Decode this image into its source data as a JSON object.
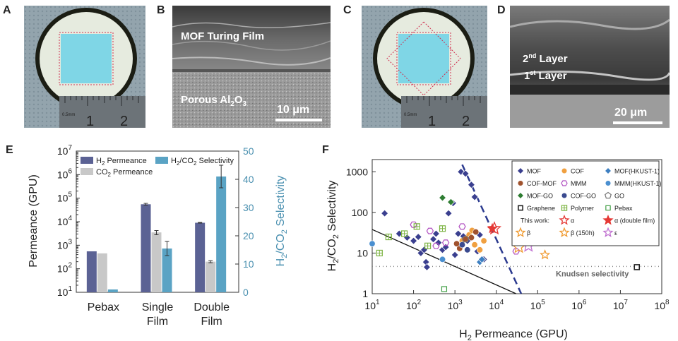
{
  "panels": {
    "a": {
      "letter": "A",
      "ruler_numbers": [
        "1",
        "2"
      ],
      "ruler_unit": "0.5mm"
    },
    "b": {
      "letter": "B",
      "label_film": "MOF Turing Film",
      "label_substrate": "Porous Al",
      "label_substrate_sub": "2",
      "label_substrate_tail": "O",
      "label_substrate_sub2": "3",
      "scale": "10 μm"
    },
    "c": {
      "letter": "C",
      "ruler_numbers": [
        "1",
        "2"
      ],
      "ruler_unit": "0.5mm"
    },
    "d": {
      "letter": "D",
      "layer2": "2",
      "layer2_sup": "nd",
      "layer2_tail": " Layer",
      "layer1": "1",
      "layer1_sup": "st",
      "layer1_tail": " Layer",
      "scale": "20 μm"
    },
    "e": {
      "letter": "E"
    },
    "f": {
      "letter": "F"
    }
  },
  "colors": {
    "h2_bar": "#5b6294",
    "co2_bar": "#c8c8c8",
    "sel_bar": "#5aa3c4",
    "membrane": "#7fd6e6",
    "dashed_line": "#2b3a8f"
  },
  "chart_data": [
    {
      "type": "bar",
      "ylabel": "Permeance (GPU)",
      "y2label": "H2/CO2 Selectivity",
      "yscale": "log",
      "ylim": [
        10,
        10000000
      ],
      "y2lim": [
        0,
        50
      ],
      "categories": [
        "Pebax",
        "Single Film",
        "Double Film"
      ],
      "category_lines": [
        [
          "Pebax"
        ],
        [
          "Single",
          "Film"
        ],
        [
          "Double",
          "Film"
        ]
      ],
      "yticks": [
        "10",
        "10",
        "10",
        "10",
        "10",
        "10",
        "10"
      ],
      "ytick_exps": [
        "1",
        "2",
        "3",
        "4",
        "5",
        "6",
        "7"
      ],
      "y2ticks": [
        "0",
        "10",
        "20",
        "30",
        "40",
        "50"
      ],
      "legend": {
        "h2": "H",
        "h2_sub": "2",
        "h2_tail": " Permeance",
        "sel": "H",
        "sel_sub": "2",
        "sel_mid": "/CO",
        "sel_sub2": "2",
        "sel_tail": " Selectivity",
        "co2": "CO",
        "co2_sub": "2",
        "co2_tail": " Permeance"
      },
      "series": [
        {
          "name": "H2 Permeance",
          "axis": "left",
          "values": [
            550,
            55000,
            9000
          ],
          "errors": [
            0,
            5000,
            300
          ]
        },
        {
          "name": "CO2 Permeance",
          "axis": "left",
          "values": [
            450,
            3500,
            200
          ],
          "errors": [
            0,
            700,
            20
          ]
        },
        {
          "name": "H2/CO2 Selectivity",
          "axis": "right",
          "values": [
            1,
            15.5,
            41
          ],
          "errors": [
            0,
            2.5,
            4
          ]
        }
      ]
    },
    {
      "type": "scatter",
      "xlabel": "H2 Permeance (GPU)",
      "ylabel": "H2/CO2 Selectivity",
      "xscale": "log",
      "yscale": "log",
      "xlim": [
        10,
        100000000
      ],
      "ylim": [
        1,
        2000
      ],
      "xticks_base": "10",
      "xtick_exps": [
        "1",
        "2",
        "3",
        "4",
        "5",
        "6",
        "7",
        "8"
      ],
      "yticks": [
        "1",
        "10",
        "100",
        "1000"
      ],
      "knudsen_label": "Knudsen selectivity",
      "knudsen_value": 4.7,
      "this_work_label": "This work:",
      "legend": [
        {
          "label": "MOF",
          "marker": "diamond",
          "color": "#3a3f8f"
        },
        {
          "label": "COF",
          "marker": "circle",
          "color": "#f0a040"
        },
        {
          "label": "MOF(HKUST-1)",
          "marker": "diamond",
          "color": "#3d7fc1"
        },
        {
          "label": "COF-MOF",
          "marker": "circle",
          "color": "#a0522d"
        },
        {
          "label": "MMM",
          "marker": "hexagon",
          "color": "#b04ec0"
        },
        {
          "label": "MMM(HKUST-1)",
          "marker": "circle",
          "color": "#4a8fd0"
        },
        {
          "label": "MOF-GO",
          "marker": "diamond",
          "color": "#2e7d32"
        },
        {
          "label": "COF-GO",
          "marker": "circle",
          "color": "#3a4a8f"
        },
        {
          "label": "GO",
          "marker": "pentagon",
          "color": "#777"
        },
        {
          "label": "Graphene",
          "marker": "square",
          "color": "#222"
        },
        {
          "label": "Polymer",
          "marker": "square-plus",
          "color": "#7cb342"
        },
        {
          "label": "Pebax",
          "marker": "square-open",
          "color": "#43a047"
        },
        {
          "label": "α",
          "marker": "star-open",
          "color": "#e53935"
        },
        {
          "label": "α (double film)",
          "marker": "star",
          "color": "#e53935"
        },
        {
          "label": "β",
          "marker": "star-open",
          "color": "#f09a30"
        },
        {
          "label": "β (150h)",
          "marker": "star-open",
          "color": "#f09a30"
        },
        {
          "label": "ε",
          "marker": "star-open",
          "color": "#c070d0"
        }
      ],
      "points": [
        {
          "s": "MOF",
          "x": 20,
          "y": 95
        },
        {
          "s": "MOF",
          "x": 45,
          "y": 30
        },
        {
          "s": "MOF",
          "x": 70,
          "y": 24
        },
        {
          "s": "MOF",
          "x": 100,
          "y": 20
        },
        {
          "s": "MOF",
          "x": 130,
          "y": 25
        },
        {
          "s": "MOF",
          "x": 150,
          "y": 10
        },
        {
          "s": "MOF",
          "x": 180,
          "y": 12
        },
        {
          "s": "MOF",
          "x": 200,
          "y": 6
        },
        {
          "s": "MOF",
          "x": 210,
          "y": 4.5
        },
        {
          "s": "MOF",
          "x": 300,
          "y": 22
        },
        {
          "s": "MOF",
          "x": 350,
          "y": 30
        },
        {
          "s": "MOF",
          "x": 400,
          "y": 18
        },
        {
          "s": "MOF",
          "x": 500,
          "y": 12
        },
        {
          "s": "MOF",
          "x": 600,
          "y": 14
        },
        {
          "s": "MOF",
          "x": 700,
          "y": 95
        },
        {
          "s": "MOF",
          "x": 900,
          "y": 170
        },
        {
          "s": "MOF",
          "x": 1000,
          "y": 9
        },
        {
          "s": "MOF",
          "x": 1200,
          "y": 30
        },
        {
          "s": "MOF",
          "x": 1400,
          "y": 1000
        },
        {
          "s": "MOF",
          "x": 1600,
          "y": 26
        },
        {
          "s": "MOF",
          "x": 1800,
          "y": 900
        },
        {
          "s": "MOF",
          "x": 2000,
          "y": 20
        },
        {
          "s": "MOF",
          "x": 2500,
          "y": 480
        },
        {
          "s": "MOF",
          "x": 3000,
          "y": 240
        },
        {
          "s": "MOF",
          "x": 3500,
          "y": 11
        },
        {
          "s": "MOF",
          "x": 4000,
          "y": 28
        },
        {
          "s": "MOF",
          "x": 5000,
          "y": 7
        },
        {
          "s": "COF",
          "x": 1500,
          "y": 20
        },
        {
          "s": "COF",
          "x": 2200,
          "y": 28
        },
        {
          "s": "COF",
          "x": 3000,
          "y": 16
        },
        {
          "s": "COF",
          "x": 4000,
          "y": 12
        },
        {
          "s": "COF",
          "x": 5000,
          "y": 20
        },
        {
          "s": "COF",
          "x": 2600,
          "y": 36
        },
        {
          "s": "COF-MOF",
          "x": 1300,
          "y": 13
        },
        {
          "s": "COF-MOF",
          "x": 1800,
          "y": 22
        },
        {
          "s": "COF-MOF",
          "x": 2500,
          "y": 24
        },
        {
          "s": "COF-MOF",
          "x": 3200,
          "y": 33
        },
        {
          "s": "COF-MOF",
          "x": 1100,
          "y": 17
        },
        {
          "s": "MMM",
          "x": 100,
          "y": 50
        },
        {
          "s": "MMM",
          "x": 250,
          "y": 35
        },
        {
          "s": "MMM",
          "x": 350,
          "y": 15
        },
        {
          "s": "MMM",
          "x": 600,
          "y": 18
        },
        {
          "s": "MMM",
          "x": 1500,
          "y": 45
        },
        {
          "s": "MMM",
          "x": 30000,
          "y": 11
        },
        {
          "s": "MOF(HKUST-1)",
          "x": 4000,
          "y": 6
        },
        {
          "s": "MOF(HKUST-1)",
          "x": 4500,
          "y": 7
        },
        {
          "s": "MMM(HKUST-1)",
          "x": 10,
          "y": 17
        },
        {
          "s": "MMM(HKUST-1)",
          "x": 500,
          "y": 7
        },
        {
          "s": "MOF-GO",
          "x": 500,
          "y": 230
        },
        {
          "s": "MOF-GO",
          "x": 800,
          "y": 180
        },
        {
          "s": "COF-GO",
          "x": 1500,
          "y": 16
        },
        {
          "s": "COF-GO",
          "x": 2000,
          "y": 12
        },
        {
          "s": "GO",
          "x": 1800,
          "y": 22
        },
        {
          "s": "Graphene",
          "x": 300000,
          "y": 25
        },
        {
          "s": "Graphene",
          "x": 25000000,
          "y": 4.5
        },
        {
          "s": "Polymer",
          "x": 15,
          "y": 10
        },
        {
          "s": "Polymer",
          "x": 25,
          "y": 25
        },
        {
          "s": "Polymer",
          "x": 60,
          "y": 30
        },
        {
          "s": "Polymer",
          "x": 120,
          "y": 45
        },
        {
          "s": "Polymer",
          "x": 220,
          "y": 15
        },
        {
          "s": "Polymer",
          "x": 500,
          "y": 40
        },
        {
          "s": "Pebax",
          "x": 550,
          "y": 1.3
        },
        {
          "s": "α",
          "x": 9000,
          "y": 40
        },
        {
          "s": "α (double film)",
          "x": 8000,
          "y": 40
        },
        {
          "s": "β",
          "x": 35000,
          "y": 14
        },
        {
          "s": "β (150h)",
          "x": 150000,
          "y": 9
        },
        {
          "s": "ε",
          "x": 60000,
          "y": 15
        }
      ],
      "robeson_line": [
        [
          10,
          38
        ],
        [
          30000,
          1
        ]
      ],
      "upper_bound_line": [
        [
          1500,
          1500
        ],
        [
          40000,
          1
        ]
      ]
    }
  ]
}
